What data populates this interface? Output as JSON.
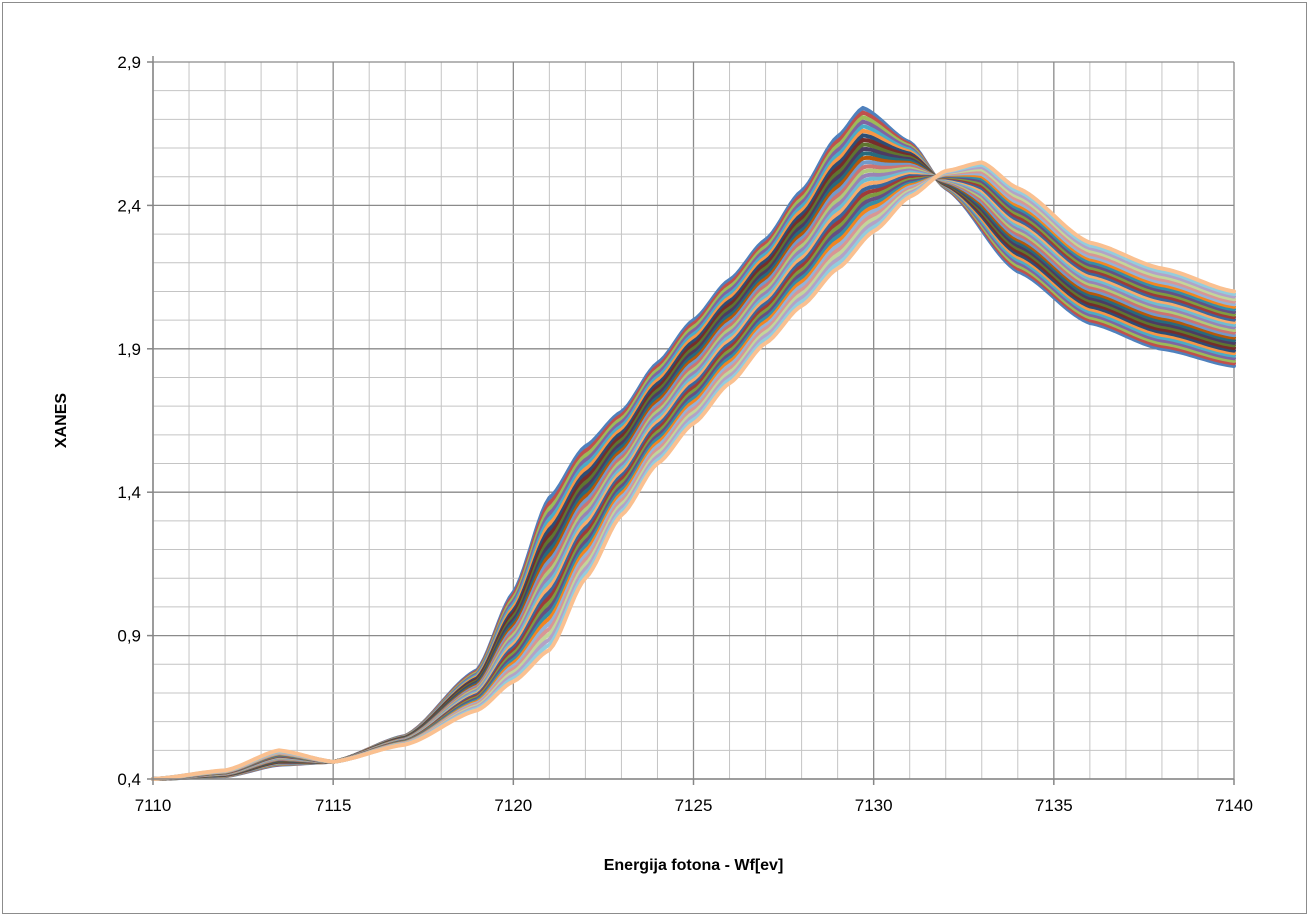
{
  "chart_data": {
    "type": "line",
    "title": "",
    "xlabel": "Energija fotona - Wf[ev]",
    "ylabel": "XANES",
    "xlim": [
      7110,
      7140
    ],
    "ylim": [
      0.4,
      2.9
    ],
    "x_ticks": [
      7110,
      7115,
      7120,
      7125,
      7130,
      7135,
      7140
    ],
    "x_tick_labels": [
      "7110",
      "7115",
      "7120",
      "7125",
      "7130",
      "7135",
      "7140"
    ],
    "y_ticks": [
      0.4,
      0.9,
      1.4,
      1.9,
      2.4,
      2.9
    ],
    "y_tick_labels": [
      "0,4",
      "0,9",
      "1,4",
      "1,9",
      "2,4",
      "2,9"
    ],
    "grid": true,
    "minor_grid": {
      "x_step": 1,
      "y_step": 0.1
    },
    "legend": "none",
    "series_count": 30,
    "series_envelope": {
      "early": {
        "x": [
          7110,
          7112,
          7113.5,
          7115,
          7117,
          7119,
          7120,
          7121,
          7122,
          7123,
          7124,
          7125,
          7126,
          7127,
          7128,
          7129,
          7129.7,
          7131,
          7132,
          7134,
          7136,
          7138,
          7140
        ],
        "y": [
          0.4,
          0.41,
          0.45,
          0.46,
          0.55,
          0.78,
          1.05,
          1.38,
          1.56,
          1.68,
          1.85,
          2.0,
          2.14,
          2.28,
          2.45,
          2.64,
          2.74,
          2.62,
          2.46,
          2.17,
          1.99,
          1.9,
          1.84
        ]
      },
      "late": {
        "x": [
          7110,
          7112,
          7113.5,
          7115,
          7117,
          7119,
          7120,
          7121,
          7122,
          7123,
          7124,
          7125,
          7126,
          7127,
          7128,
          7129,
          7130,
          7131,
          7132,
          7133,
          7134,
          7136,
          7138,
          7140
        ],
        "y": [
          0.4,
          0.43,
          0.5,
          0.46,
          0.52,
          0.64,
          0.74,
          0.85,
          1.1,
          1.32,
          1.5,
          1.64,
          1.78,
          1.92,
          2.05,
          2.18,
          2.31,
          2.43,
          2.52,
          2.55,
          2.46,
          2.27,
          2.18,
          2.1
        ]
      }
    },
    "colors": [
      "#4f81bd",
      "#c0504d",
      "#9bbb59",
      "#8064a2",
      "#4bacc6",
      "#f79646",
      "#2c4d75",
      "#772c2a",
      "#5f7530",
      "#4d3b62",
      "#276a7c",
      "#b65708",
      "#729aca",
      "#cd7371",
      "#afc97a",
      "#9983b5",
      "#6fbdd1",
      "#f9ab6b",
      "#3a679c",
      "#9f3b38",
      "#7f9c40",
      "#664f83",
      "#358ea6",
      "#f28520",
      "#95b3d7",
      "#d99694",
      "#c3d69b",
      "#b3a2c7",
      "#93cddd",
      "#fac090"
    ]
  }
}
